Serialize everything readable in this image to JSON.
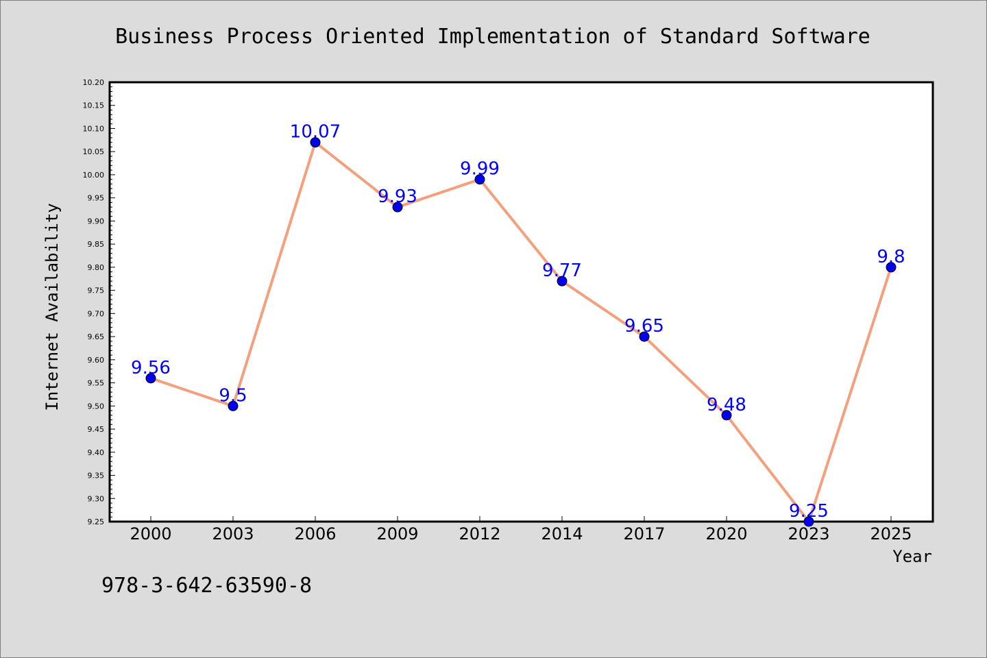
{
  "chart_data": {
    "type": "line",
    "title": "Business Process Oriented Implementation of Standard Software",
    "xlabel": "Year",
    "ylabel": "Internet Availability",
    "categories": [
      "2000",
      "2003",
      "2006",
      "2009",
      "2012",
      "2014",
      "2017",
      "2020",
      "2023",
      "2025"
    ],
    "series": [
      {
        "values": [
          9.56,
          9.5,
          10.07,
          9.93,
          9.99,
          9.77,
          9.65,
          9.48,
          9.25,
          9.8
        ],
        "data_labels": [
          "9.56",
          "9.5",
          "10.07",
          "9.93",
          "9.99",
          "9.77",
          "9.65",
          "9.48",
          "9.25",
          "9.8"
        ],
        "line_color": "#f4a07c",
        "marker_color": "#0000ee",
        "label_color": "#0000ff"
      }
    ],
    "ylim": [
      9.25,
      10.2
    ],
    "yticks": [
      "9.25",
      "9.30",
      "9.35",
      "9.40",
      "9.45",
      "9.50",
      "9.55",
      "9.60",
      "9.65",
      "9.70",
      "9.75",
      "9.80",
      "9.85",
      "9.90",
      "9.95",
      "10.00",
      "10.05",
      "10.10",
      "10.15",
      "10.20"
    ],
    "grid": false,
    "legend": "none"
  },
  "footer": {
    "isbn": "978-3-642-63590-8"
  },
  "colors": {
    "background": "#dcdcdc",
    "plot_background": "#ffffff"
  }
}
